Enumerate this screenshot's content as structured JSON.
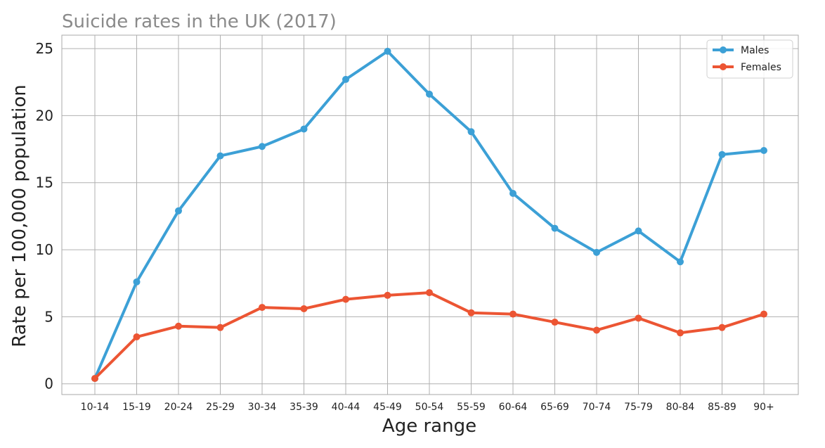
{
  "chart_data": {
    "type": "line",
    "title": "Suicide rates in the UK (2017)",
    "xlabel": "Age range",
    "ylabel": "Rate per 100,000 population",
    "categories": [
      "10-14",
      "15-19",
      "20-24",
      "25-29",
      "30-34",
      "35-39",
      "40-44",
      "45-49",
      "50-54",
      "55-59",
      "60-64",
      "65-69",
      "70-74",
      "75-79",
      "80-84",
      "85-89",
      "90+"
    ],
    "yticks": [
      0,
      5,
      10,
      15,
      20,
      25
    ],
    "ylim": [
      -0.8,
      26
    ],
    "grid": true,
    "legend_position": "top-right",
    "series": [
      {
        "name": "Males",
        "color": "#3ca0d6",
        "values": [
          0.4,
          7.6,
          12.9,
          17.0,
          17.7,
          19.0,
          22.7,
          24.8,
          21.6,
          18.8,
          14.2,
          11.6,
          9.8,
          11.4,
          9.1,
          17.1,
          17.4
        ]
      },
      {
        "name": "Females",
        "color": "#ec5533",
        "values": [
          0.4,
          3.5,
          4.3,
          4.2,
          5.7,
          5.6,
          6.3,
          6.6,
          6.8,
          5.3,
          5.2,
          4.6,
          4.0,
          4.9,
          3.8,
          4.2,
          5.2
        ]
      }
    ]
  }
}
